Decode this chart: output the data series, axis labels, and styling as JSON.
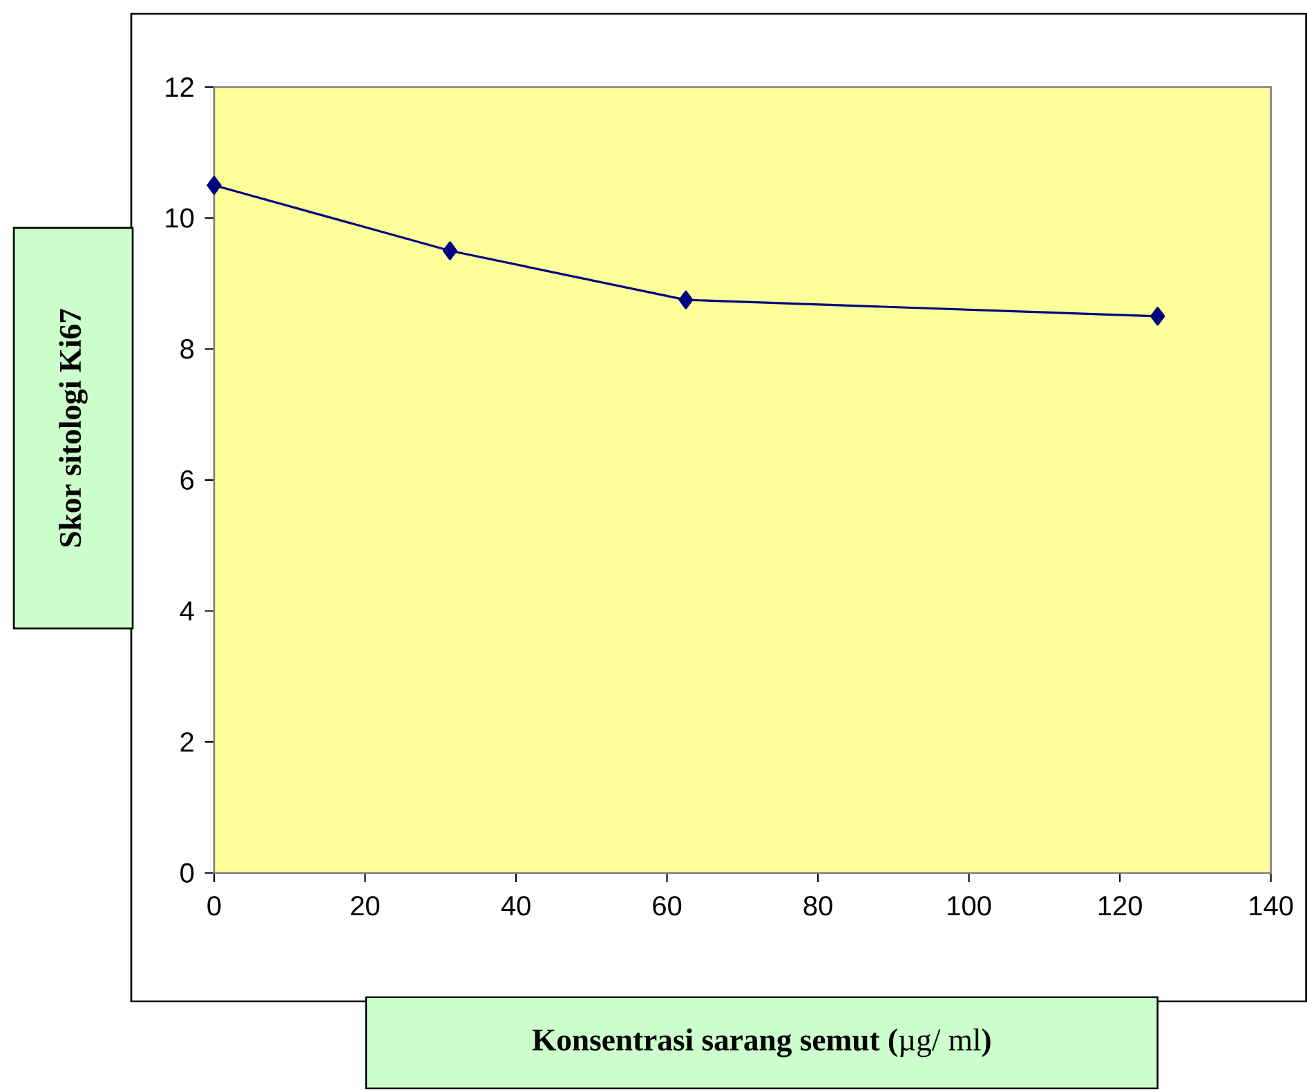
{
  "chart_data": {
    "type": "line",
    "xlabel": "**Konsentrasi sarang semut (**µg/ ml**)**",
    "ylabel": "Skor sitologi  Ki67",
    "x": [
      0,
      31.25,
      62.5,
      125
    ],
    "series": [
      {
        "color": "#000080",
        "values": [
          10.5,
          9.5,
          8.75,
          8.5
        ]
      }
    ],
    "xlim": [
      0,
      140
    ],
    "xticks": [
      0,
      20,
      40,
      60,
      80,
      100,
      120,
      140
    ],
    "ylim": [
      0,
      12
    ],
    "yticks": [
      0,
      2,
      4,
      6,
      8,
      10,
      12
    ],
    "marker": "diamond",
    "line_style": "solid",
    "grid": false
  }
}
